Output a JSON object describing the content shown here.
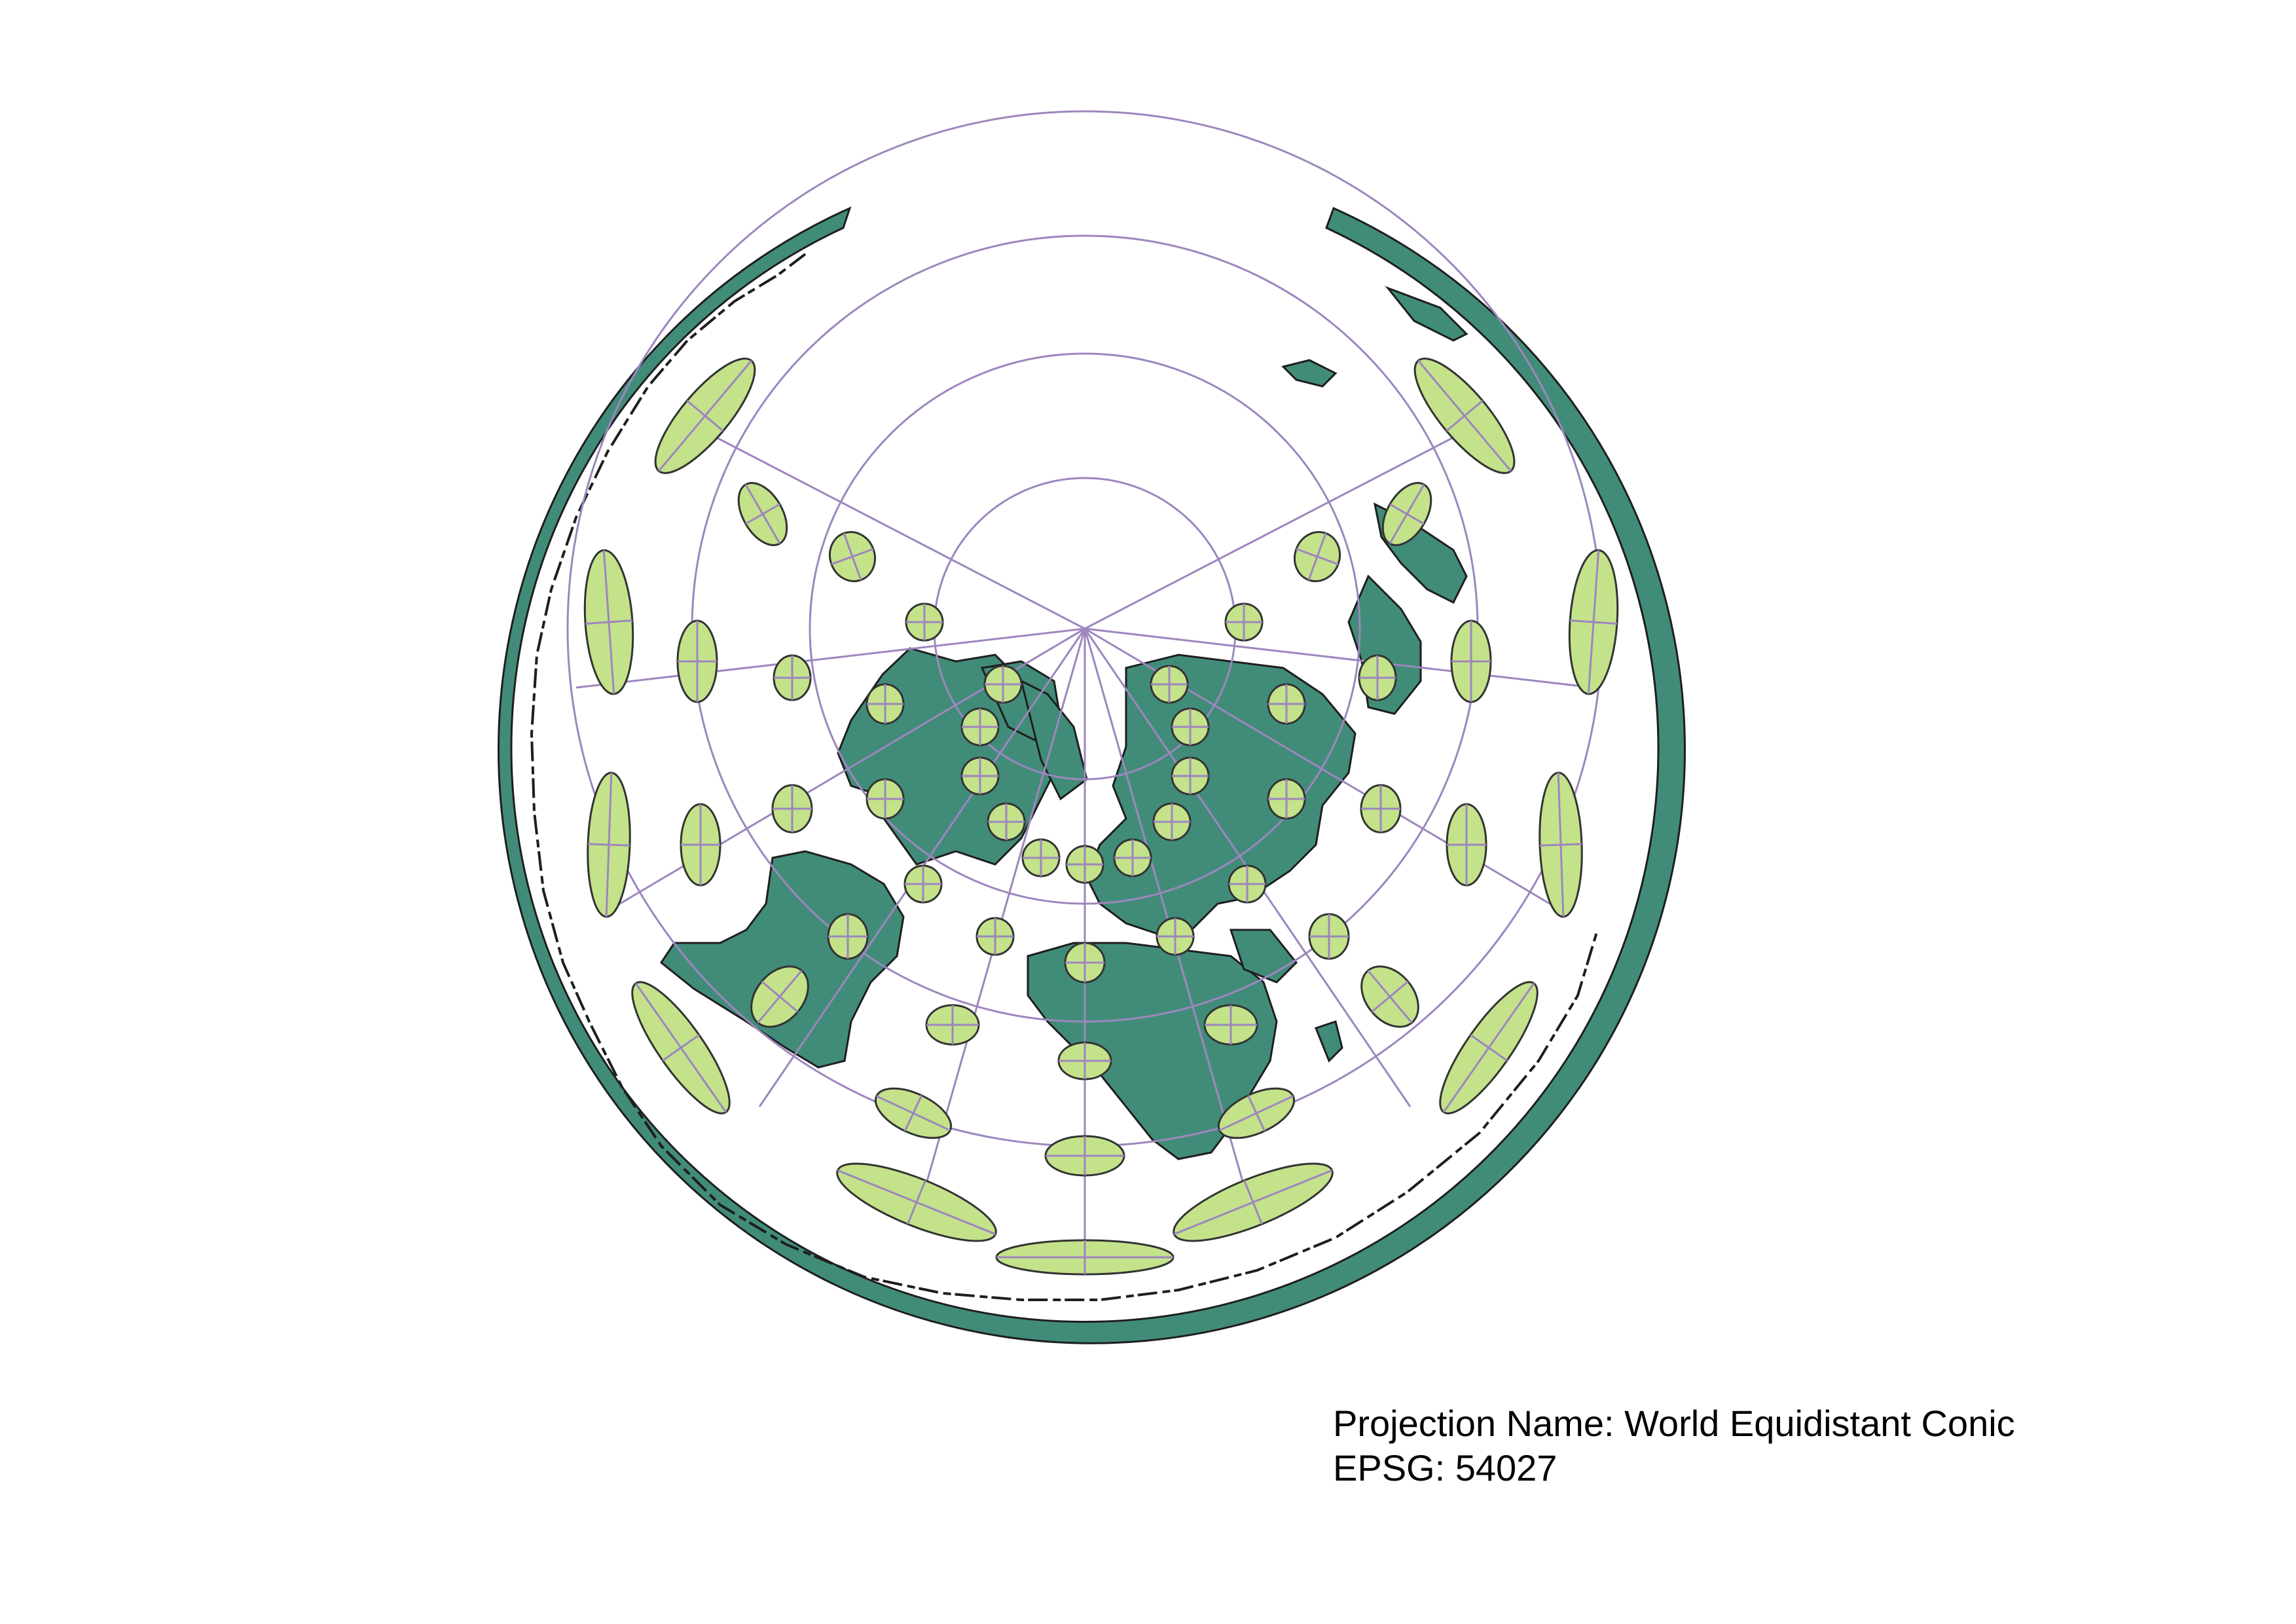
{
  "caption": {
    "projection_line": "Projection Name: World Equidistant Conic",
    "epsg_line": "EPSG: 54027"
  },
  "map": {
    "projection_name": "World Equidistant Conic",
    "epsg": "54027",
    "colors": {
      "land": "#418c79",
      "land_stroke": "#1e1e1e",
      "indicatrix_fill": "#c3e28a",
      "indicatrix_stroke": "#333333",
      "graticule": "#9d86be",
      "background": "#ffffff"
    },
    "layers": [
      "land-polygons",
      "tissot-indicatrix",
      "graticule"
    ]
  }
}
